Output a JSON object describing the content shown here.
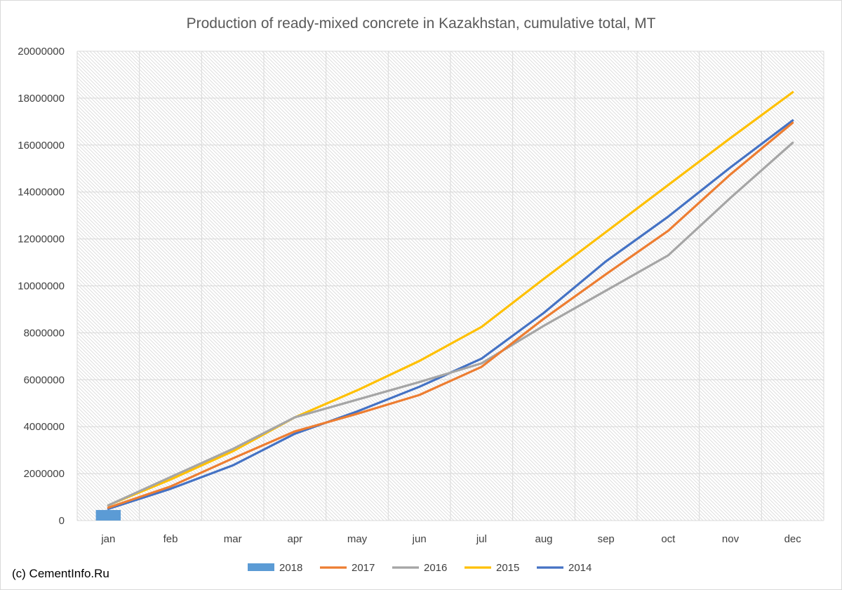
{
  "credit": "(c) CementInfo.Ru",
  "chart_data": {
    "type": "line",
    "title": "Production of ready-mixed concrete in Kazakhstan, cumulative total, MT",
    "xlabel": "",
    "ylabel": "",
    "categories": [
      "jan",
      "feb",
      "mar",
      "apr",
      "may",
      "jun",
      "jul",
      "aug",
      "sep",
      "oct",
      "nov",
      "dec"
    ],
    "ylim": [
      0,
      20000000
    ],
    "yticks": [
      "0",
      "2000000",
      "4000000",
      "6000000",
      "8000000",
      "10000000",
      "12000000",
      "14000000",
      "16000000",
      "18000000",
      "20000000"
    ],
    "grid": true,
    "legend_position": "bottom",
    "series": [
      {
        "name": "2018",
        "kind": "bar",
        "color": "#5B9BD5",
        "values": [
          450000,
          null,
          null,
          null,
          null,
          null,
          null,
          null,
          null,
          null,
          null,
          null
        ]
      },
      {
        "name": "2017",
        "kind": "line",
        "color": "#ED7D31",
        "values": [
          550000,
          1450000,
          2650000,
          3800000,
          4550000,
          5350000,
          6550000,
          8600000,
          10500000,
          12350000,
          14750000,
          16950000
        ]
      },
      {
        "name": "2016",
        "kind": "line",
        "color": "#A5A5A5",
        "values": [
          650000,
          1850000,
          3050000,
          4400000,
          5150000,
          5900000,
          6700000,
          8300000,
          9800000,
          11300000,
          13750000,
          16100000
        ]
      },
      {
        "name": "2015",
        "kind": "line",
        "color": "#FFC000",
        "values": [
          650000,
          1750000,
          2950000,
          4400000,
          5550000,
          6800000,
          8250000,
          10300000,
          12300000,
          14300000,
          16300000,
          18250000
        ]
      },
      {
        "name": "2014",
        "kind": "line",
        "color": "#4472C4",
        "values": [
          500000,
          1350000,
          2350000,
          3700000,
          4650000,
          5700000,
          6900000,
          8850000,
          11050000,
          12950000,
          15050000,
          17050000
        ]
      }
    ]
  }
}
